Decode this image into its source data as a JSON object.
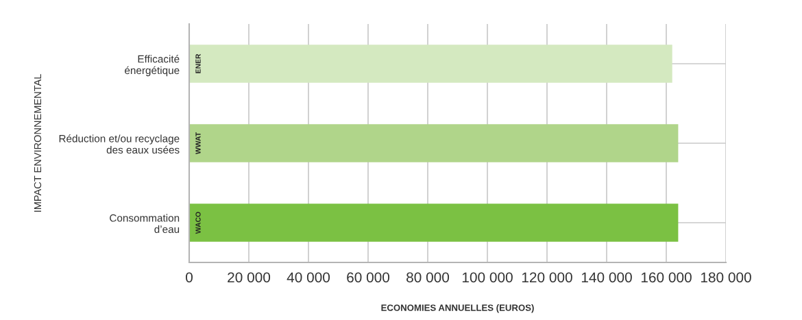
{
  "chart_data": {
    "type": "bar",
    "orientation": "horizontal",
    "categories": [
      "Efficacité\nénergétique",
      "Réduction et/ou recyclage\ndes eaux usées",
      "Consommation\nd’eau"
    ],
    "values": [
      162000,
      164000,
      164000
    ],
    "colors": [
      "#d4e9c0",
      "#b0d58a",
      "#7bc143"
    ],
    "xlabel": "ECONOMIES ANNUELLES (EUROS)",
    "ylabel": "IMPACT ENVIRONNEMENTAL",
    "xlim": [
      0,
      180000
    ],
    "xticks": [
      0,
      {
        "value": 20000,
        "label": "20 000"
      },
      {
        "value": 40000,
        "label": "40 000"
      },
      {
        "value": 60000,
        "label": "60 000"
      },
      {
        "value": 80000,
        "label": "80 000"
      },
      {
        "value": 100000,
        "label": "100 000"
      },
      {
        "value": 120000,
        "label": "120 000"
      },
      {
        "value": 140000,
        "label": "140 000"
      },
      {
        "value": 160000,
        "label": "160 000"
      },
      {
        "value": 180000,
        "label": "180 000"
      }
    ],
    "grid": true,
    "annotations": [
      "ENER",
      "WWAT",
      "WACO"
    ]
  }
}
